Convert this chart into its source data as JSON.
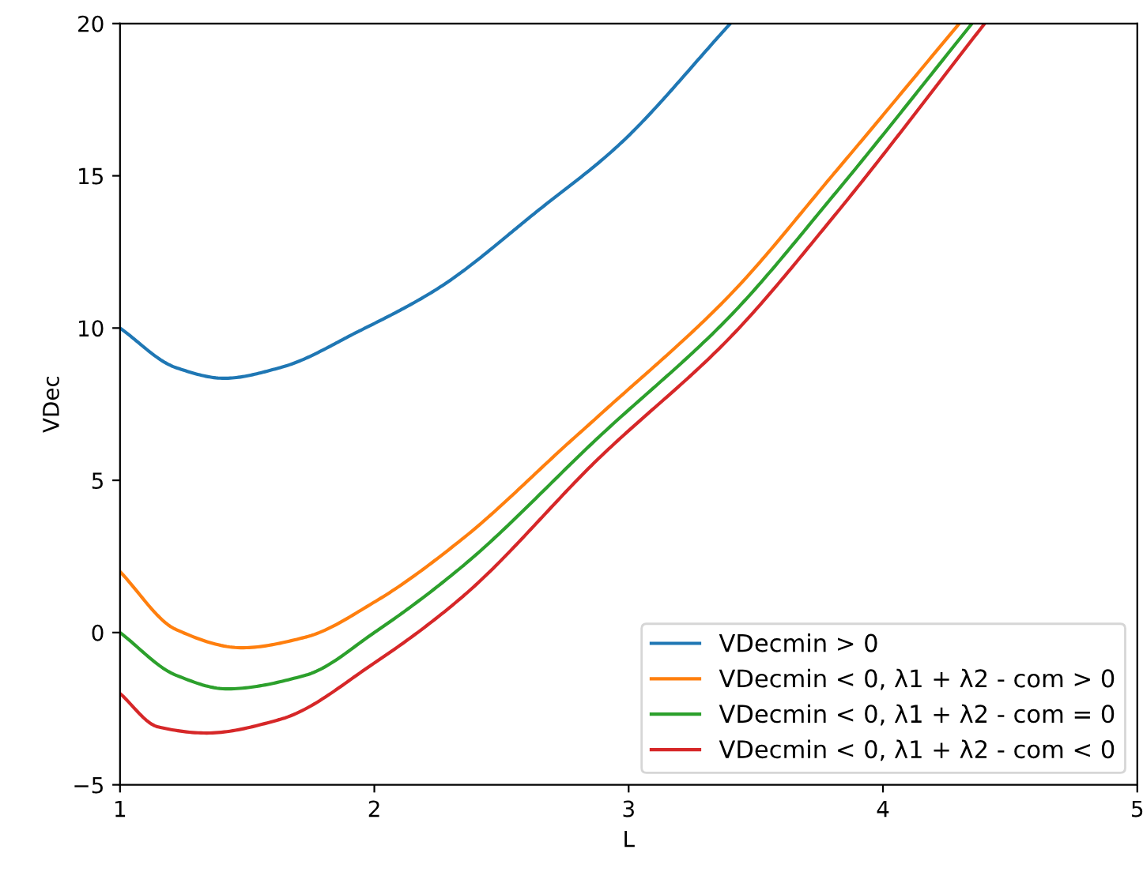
{
  "chart_data": {
    "type": "line",
    "xlabel": "L",
    "ylabel": "VDec",
    "xlim": [
      1,
      5
    ],
    "ylim": [
      -5,
      20
    ],
    "xticks": [
      1,
      2,
      3,
      4,
      5
    ],
    "yticks": [
      {
        "value": -5,
        "label": "−5"
      },
      0,
      5,
      10,
      15,
      20
    ],
    "grid": false,
    "legend": "bottom right",
    "marker": "none",
    "line_style": "solid",
    "series": [
      {
        "name": "VDecmin > 0",
        "color": "#1f77b4",
        "x": [
          1,
          1.22,
          1.41,
          1.63,
          1.94,
          2.25,
          2.65,
          2.96,
          3.4
        ],
        "values": [
          10,
          8.7,
          8.35,
          8.7,
          9.9,
          11.3,
          13.9,
          16,
          20
        ]
      },
      {
        "name": "VDecmin < 0, λ1 + λ2 - com > 0",
        "color": "#ff7f0e",
        "x": [
          1,
          1.22,
          1.48,
          1.73,
          2,
          2.35,
          2.76,
          2.88,
          3.4,
          3.81,
          4.3
        ],
        "values": [
          2,
          0.1,
          -0.5,
          -0.15,
          1,
          3.1,
          6.2,
          7.1,
          11.1,
          15.1,
          20
        ]
      },
      {
        "name": "VDecmin < 0, λ1 + λ2 - com = 0",
        "color": "#2ca02c",
        "x": [
          1,
          1.22,
          1.42,
          1.73,
          2,
          2.35,
          2.88,
          3.4,
          3.81,
          4.35
        ],
        "values": [
          0,
          -1.4,
          -1.85,
          -1.4,
          0,
          2.2,
          6.4,
          10.4,
          14.4,
          20
        ]
      },
      {
        "name": "VDecmin < 0, λ1 + λ2 - com < 0",
        "color": "#d62728",
        "x": [
          1,
          1.15,
          1.34,
          1.63,
          2,
          2.35,
          2.88,
          3.4,
          3.81,
          4.4
        ],
        "values": [
          -2,
          -3.1,
          -3.3,
          -2.85,
          -1,
          1.2,
          5.7,
          9.7,
          13.7,
          20
        ]
      }
    ]
  }
}
